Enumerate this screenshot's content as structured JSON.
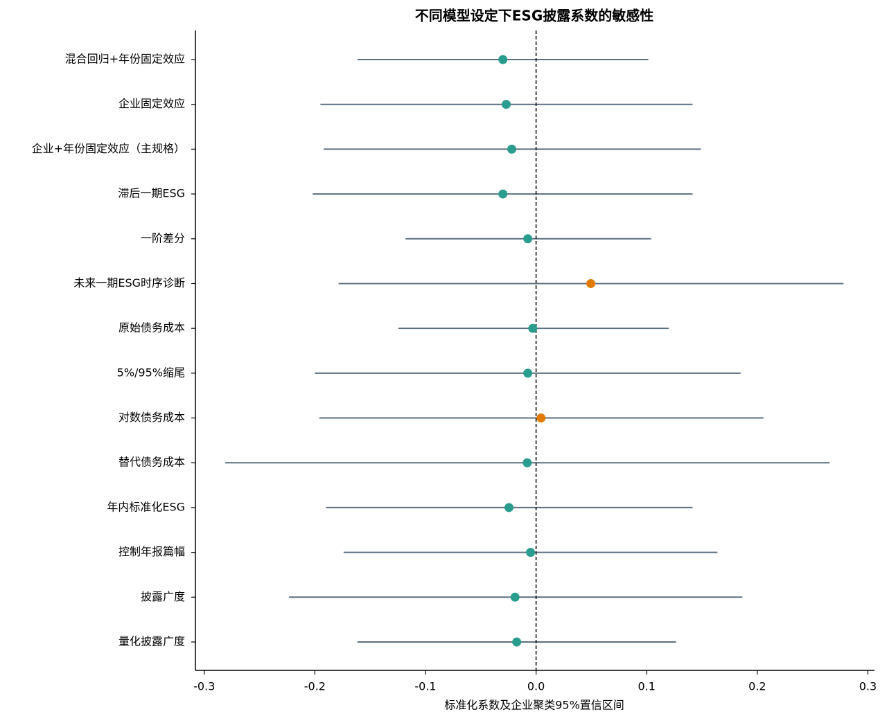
{
  "chart_data": {
    "type": "forest",
    "title": "不同模型设定下ESG披露系数的敏感性",
    "xlabel": "标准化系数及企业聚类95%置信区间",
    "categories": [
      "混合回归+年份固定效应",
      "企业固定效应",
      "企业+年份固定效应（主规格）",
      "滞后一期ESG",
      "一阶差分",
      "未来一期ESG时序诊断",
      "原始债务成本",
      "5%/95%缩尾",
      "对数债务成本",
      "替代债务成本",
      "年内标准化ESG",
      "控制年报篇幅",
      "披露广度",
      "量化披露广度"
    ],
    "values": [
      -0.03,
      -0.027,
      -0.022,
      -0.03,
      -0.0075,
      0.0495,
      -0.003,
      -0.0075,
      0.0045,
      -0.008,
      -0.0245,
      -0.005,
      -0.019,
      -0.0175
    ],
    "lower": [
      -0.1615,
      -0.195,
      -0.192,
      -0.202,
      -0.118,
      -0.1785,
      -0.1245,
      -0.2,
      -0.196,
      -0.281,
      -0.19,
      -0.174,
      -0.2235,
      -0.1615
    ],
    "upper": [
      0.1015,
      0.1415,
      0.149,
      0.1415,
      0.104,
      0.278,
      0.12,
      0.185,
      0.2055,
      0.2655,
      0.1415,
      0.164,
      0.1865,
      0.1265
    ],
    "colors": [
      "#2a9d8f",
      "#2a9d8f",
      "#2a9d8f",
      "#2a9d8f",
      "#2a9d8f",
      "#e07b00",
      "#2a9d8f",
      "#2a9d8f",
      "#e07b00",
      "#2a9d8f",
      "#2a9d8f",
      "#2a9d8f",
      "#2a9d8f",
      "#2a9d8f"
    ],
    "ci_color": "#5a6e80",
    "reference_line": 0,
    "xlim": [
      -0.308,
      0.306
    ],
    "xticks": [
      -0.3,
      -0.2,
      -0.1,
      {
        "value": 0,
        "label": "0.0"
      },
      0.1,
      0.2,
      0.3
    ]
  }
}
